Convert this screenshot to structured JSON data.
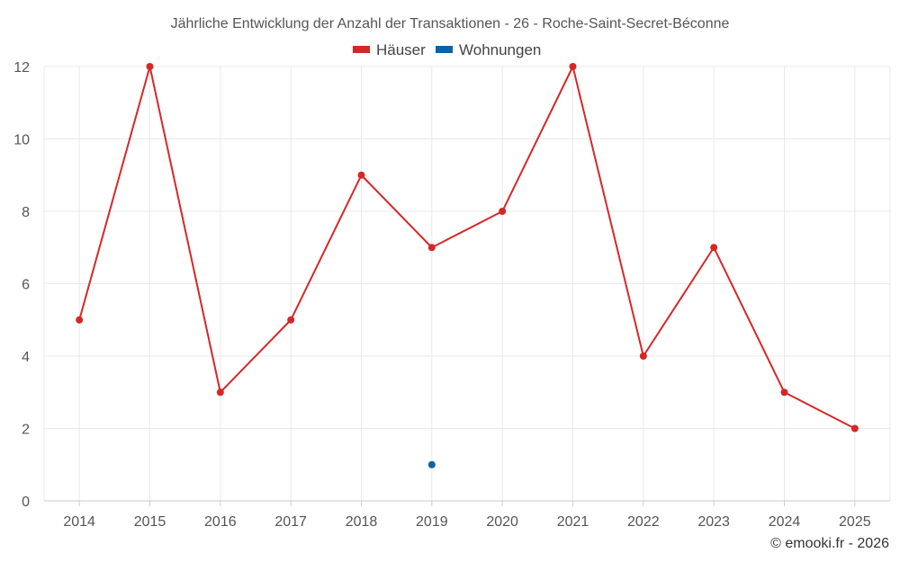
{
  "chart_data": {
    "type": "line",
    "title": "Jährliche Entwicklung der Anzahl der Transaktionen - 26 - Roche-Saint-Secret-Béconne",
    "categories": [
      "2014",
      "2015",
      "2016",
      "2017",
      "2018",
      "2019",
      "2020",
      "2021",
      "2022",
      "2023",
      "2024",
      "2025"
    ],
    "series": [
      {
        "name": "Häuser",
        "color": "#d62728",
        "values": [
          5,
          12,
          3,
          5,
          9,
          7,
          8,
          12,
          4,
          7,
          3,
          2
        ]
      },
      {
        "name": "Wohnungen",
        "color": "#0b63a3",
        "values": [
          null,
          null,
          null,
          null,
          null,
          1,
          null,
          null,
          null,
          null,
          null,
          null
        ]
      }
    ],
    "ylim": [
      0,
      12
    ],
    "yticks": [
      0,
      2,
      4,
      6,
      8,
      10,
      12
    ],
    "grid": true,
    "legend_position": "top-center",
    "credit": "© emooki.fr - 2026"
  }
}
